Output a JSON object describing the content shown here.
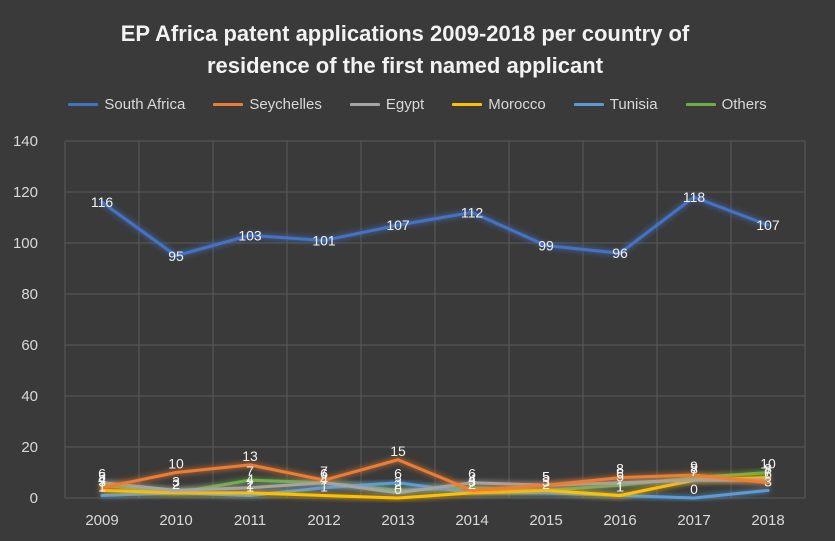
{
  "chart_data": {
    "type": "line",
    "title_lines": [
      "EP Africa patent applications 2009-2018 per country of",
      "residence of the first named applicant"
    ],
    "xlabel": "",
    "ylabel": "",
    "categories": [
      "2009",
      "2010",
      "2011",
      "2012",
      "2013",
      "2014",
      "2015",
      "2016",
      "2017",
      "2018"
    ],
    "ylim": [
      0,
      140
    ],
    "yticks": [
      "0",
      "20",
      "40",
      "60",
      "80",
      "100",
      "120",
      "140"
    ],
    "grid": true,
    "legend_position": "top",
    "series": [
      {
        "name": "South Africa",
        "color": "#4472c4",
        "values": [
          116,
          95,
          103,
          101,
          107,
          112,
          99,
          96,
          118,
          107
        ]
      },
      {
        "name": "Seychelles",
        "color": "#ed7d31",
        "values": [
          4,
          10,
          13,
          7,
          15,
          3,
          5,
          8,
          9,
          6
        ]
      },
      {
        "name": "Egypt",
        "color": "#a5a5a5",
        "values": [
          6,
          3,
          4,
          6,
          2,
          6,
          5,
          6,
          7,
          7
        ]
      },
      {
        "name": "Morocco",
        "color": "#ffc000",
        "values": [
          3,
          2,
          2,
          1,
          0,
          2,
          3,
          1,
          7,
          8
        ]
      },
      {
        "name": "Tunisia",
        "color": "#5b9bd5",
        "values": [
          1,
          2,
          1,
          4,
          6,
          2,
          2,
          1,
          0,
          3
        ]
      },
      {
        "name": "Others",
        "color": "#70ad47",
        "values": [
          5,
          2,
          7,
          6,
          3,
          4,
          3,
          5,
          8,
          10
        ]
      }
    ]
  }
}
